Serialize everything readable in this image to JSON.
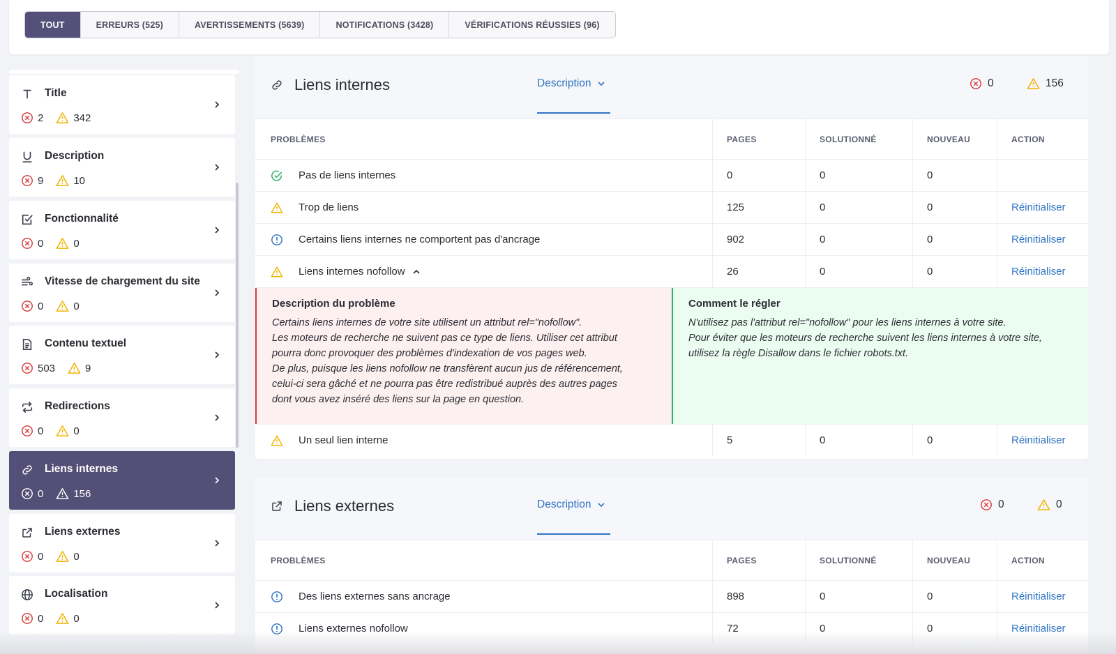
{
  "filters": [
    {
      "label": "TOUT",
      "active": true
    },
    {
      "label": "ERREURS (525)",
      "active": false
    },
    {
      "label": "AVERTISSEMENTS (5639)",
      "active": false
    },
    {
      "label": "NOTIFICATIONS (3428)",
      "active": false
    },
    {
      "label": "VÉRIFICATIONS RÉUSSIES (96)",
      "active": false
    }
  ],
  "sidebar": {
    "items": [
      {
        "icon": "text-title-icon",
        "title": "Title",
        "errors": "2",
        "warnings": "342"
      },
      {
        "icon": "underline-icon",
        "title": "Description",
        "errors": "9",
        "warnings": "10"
      },
      {
        "icon": "checkbox-icon",
        "title": "Fonctionnalité",
        "errors": "0",
        "warnings": "0"
      },
      {
        "icon": "speed-icon",
        "title": "Vitesse de chargement du site",
        "errors": "0",
        "warnings": "0"
      },
      {
        "icon": "document-icon",
        "title": "Contenu textuel",
        "errors": "503",
        "warnings": "9"
      },
      {
        "icon": "redirect-icon",
        "title": "Redirections",
        "errors": "0",
        "warnings": "0"
      },
      {
        "icon": "link-icon",
        "title": "Liens internes",
        "errors": "0",
        "warnings": "156",
        "active": true
      },
      {
        "icon": "external-link-icon",
        "title": "Liens externes",
        "errors": "0",
        "warnings": "0"
      },
      {
        "icon": "globe-icon",
        "title": "Localisation",
        "errors": "0",
        "warnings": "0"
      }
    ]
  },
  "columns": {
    "problems": "PROBLÈMES",
    "pages": "PAGES",
    "solved": "SOLUTIONNÉ",
    "new": "NOUVEAU",
    "action": "ACTION"
  },
  "internal": {
    "title": "Liens internes",
    "desc_tab": "Description",
    "errors": "0",
    "warnings": "156",
    "rows": [
      {
        "type": "ok",
        "label": "Pas de liens internes",
        "pages": "0",
        "solved": "0",
        "new": "0",
        "action": ""
      },
      {
        "type": "warning",
        "label": "Trop de liens",
        "pages": "125",
        "solved": "0",
        "new": "0",
        "action": "Réinitialiser"
      },
      {
        "type": "info",
        "label": "Certains liens internes ne comportent pas d'ancrage",
        "pages": "902",
        "solved": "0",
        "new": "0",
        "action": "Réinitialiser"
      },
      {
        "type": "warning",
        "label": "Liens internes nofollow",
        "pages": "26",
        "solved": "0",
        "new": "0",
        "action": "Réinitialiser"
      }
    ],
    "expanded": {
      "problem_title": "Description du problème",
      "problem_text": "Certains liens internes de votre site utilisent un attribut rel=\"nofollow\".\nLes moteurs de recherche ne suivent pas ce type de liens. Utiliser cet attribut\npourra donc provoquer des problèmes d'indexation de vos pages web.\nDe plus, puisque les liens nofollow ne transfèrent aucun jus de référencement,\ncelui-ci sera gâché et ne pourra pas être redistribué auprès des autres pages\ndont vous avez inséré des liens sur la page en question.",
      "fix_title": "Comment le régler",
      "fix_text": "N'utilisez pas l'attribut rel=\"nofollow\" pour les liens internes à votre site.\nPour éviter que les moteurs de recherche suivent les liens internes à votre site,\nutilisez la règle Disallow dans le fichier robots.txt."
    },
    "last_row": {
      "type": "warning",
      "label": "Un seul lien interne",
      "pages": "5",
      "solved": "0",
      "new": "0",
      "action": "Réinitialiser"
    }
  },
  "external": {
    "title": "Liens externes",
    "desc_tab": "Description",
    "errors": "0",
    "warnings": "0",
    "rows": [
      {
        "type": "info",
        "label": "Des liens externes sans ancrage",
        "pages": "898",
        "solved": "0",
        "new": "0",
        "action": "Réinitialiser"
      },
      {
        "type": "info",
        "label": "Liens externes nofollow",
        "pages": "72",
        "solved": "0",
        "new": "0",
        "action": "Réinitialiser"
      }
    ]
  },
  "colors": {
    "accent": "#544f77",
    "link": "#2f74c4",
    "error": "#d83a3a",
    "warning": "#f0b400",
    "info": "#2f74c4",
    "ok": "#2fb16b"
  }
}
